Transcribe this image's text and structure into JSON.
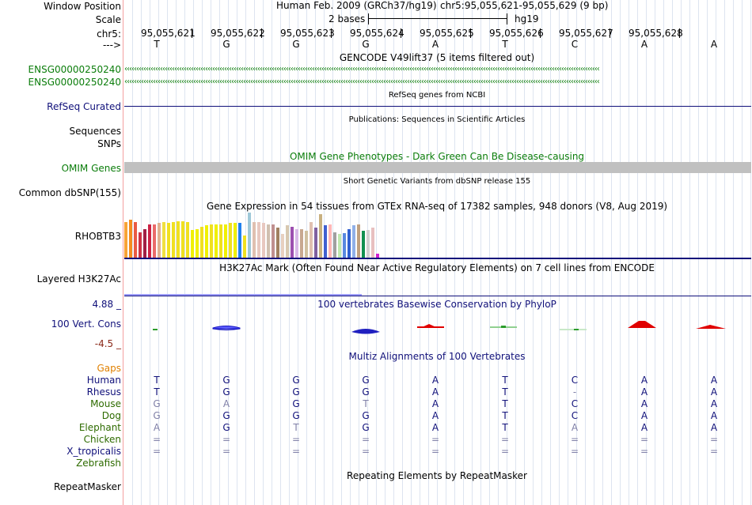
{
  "labels": {
    "window_position": "Window Position",
    "scale": "Scale",
    "chr": "chr5:",
    "arrow": "--->",
    "ensg1": "ENSG00000250240",
    "ensg2": "ENSG00000250240",
    "refseq": "RefSeq Curated",
    "sequences": "Sequences",
    "snps": "SNPs",
    "omim": "OMIM Genes",
    "common_dbsnp": "Common dbSNP(155)",
    "rhobtb3": "RHOBTB3",
    "layered": "Layered H3K27Ac",
    "cons_max": "4.88 _",
    "cons_label": "100 Vert. Cons",
    "cons_min": "-4.5 _",
    "gaps": "Gaps",
    "human": "Human",
    "rhesus": "Rhesus",
    "mouse": "Mouse",
    "dog": "Dog",
    "elephant": "Elephant",
    "chicken": "Chicken",
    "x_tropicalis": "X_tropicalis",
    "zebrafish": "Zebrafish",
    "repeatmasker": "RepeatMasker"
  },
  "header": {
    "assembly": "Human Feb. 2009 (GRCh37/hg19)",
    "position": "chr5:95,055,621-95,055,629 (9 bp)",
    "scale_text": "2 bases",
    "scale_db": "hg19"
  },
  "coords": [
    "95,055,621",
    "95,055,622",
    "95,055,623",
    "95,055,624",
    "95,055,625",
    "95,055,626",
    "95,055,627",
    "95,055,628"
  ],
  "bases": [
    "T",
    "G",
    "G",
    "G",
    "A",
    "T",
    "C",
    "A",
    "A"
  ],
  "tracks": {
    "gencode": "GENCODE V49lift37 (5 items filtered out)",
    "refseq_title": "RefSeq genes from NCBI",
    "publications": "Publications: Sequences in Scientific Articles",
    "omim_title": "OMIM Gene Phenotypes - Dark Green Can Be Disease-causing",
    "dbsnp_title": "Short Genetic Variants from dbSNP release 155",
    "gtex_title": "Gene Expression in 54 tissues from GTEx RNA-seq of 17382 samples, 948 donors (V8, Aug 2019)",
    "h3k27ac_title": "H3K27Ac Mark (Often Found Near Active Regulatory Elements) on 7 cell lines from ENCODE",
    "phylop_title": "100 vertebrates Basewise Conservation by PhyloP",
    "multiz_title": "Multiz Alignments of 100 Vertebrates",
    "repeat_title": "Repeating Elements by RepeatMasker"
  },
  "alignment": {
    "human": [
      "T",
      "G",
      "G",
      "G",
      "A",
      "T",
      "C",
      "A",
      "A"
    ],
    "rhesus": [
      "T",
      "G",
      "G",
      "G",
      "A",
      "T",
      "-",
      "A",
      "A"
    ],
    "mouse": [
      "G",
      "A",
      "G",
      "T",
      "A",
      "T",
      "C",
      "A",
      "A"
    ],
    "dog": [
      "G",
      "G",
      "G",
      "G",
      "A",
      "T",
      "C",
      "A",
      "A"
    ],
    "elephant": [
      "A",
      "G",
      "T",
      "G",
      "A",
      "T",
      "A",
      "A",
      "A"
    ],
    "chicken": [
      "=",
      "=",
      "=",
      "=",
      "=",
      "=",
      "=",
      "=",
      "="
    ],
    "x_tropicalis": [
      "=",
      "=",
      "=",
      "=",
      "=",
      "=",
      "=",
      "=",
      "="
    ]
  },
  "gtex_values": [
    0.78,
    0.82,
    0.78,
    0.55,
    0.62,
    0.72,
    0.72,
    0.76,
    0.78,
    0.76,
    0.78,
    0.8,
    0.8,
    0.78,
    0.6,
    0.62,
    0.68,
    0.7,
    0.72,
    0.72,
    0.72,
    0.72,
    0.76,
    0.76,
    0.76,
    0.48,
    0.98,
    0.78,
    0.78,
    0.76,
    0.72,
    0.72,
    0.66,
    0.52,
    0.7,
    0.68,
    0.62,
    0.62,
    0.58,
    0.78,
    0.66,
    0.95,
    0.7,
    0.72,
    0.55,
    0.52,
    0.54,
    0.62,
    0.7,
    0.72,
    0.58,
    0.6,
    0.65,
    0.08
  ],
  "gtex_colors": [
    "#f7a336",
    "#f48c1e",
    "#ea5a44",
    "#cc3344",
    "#a11f44",
    "#cc2244",
    "#ea6a6a",
    "#e0b090",
    "#f0e040",
    "#f0e020",
    "#f0e020",
    "#f0e020",
    "#f0e020",
    "#f0e020",
    "#f0f000",
    "#f0f000",
    "#f0e020",
    "#f0f000",
    "#f0e020",
    "#f0f000",
    "#f0e020",
    "#f0f000",
    "#f0e020",
    "#f0f000",
    "#2080f0",
    "#f0e020",
    "#9ec8d8",
    "#e0c0b0",
    "#e8c8c0",
    "#e8c8c0",
    "#d0c0b0",
    "#c09090",
    "#a08060",
    "#e8d0c0",
    "#d8c8b0",
    "#9c4fb0",
    "#d8b8e8",
    "#c8a890",
    "#d0c0a0",
    "#e0c0b0",
    "#8060a0",
    "#c8b080",
    "#4060d0",
    "#ffb6b6",
    "#a0a0a0",
    "#c0e8b0",
    "#5888e0",
    "#3060d0",
    "#90b0e8",
    "#c0a080",
    "#109050",
    "#d0d0d0",
    "#e8c0c0",
    "#d020d0"
  ]
}
